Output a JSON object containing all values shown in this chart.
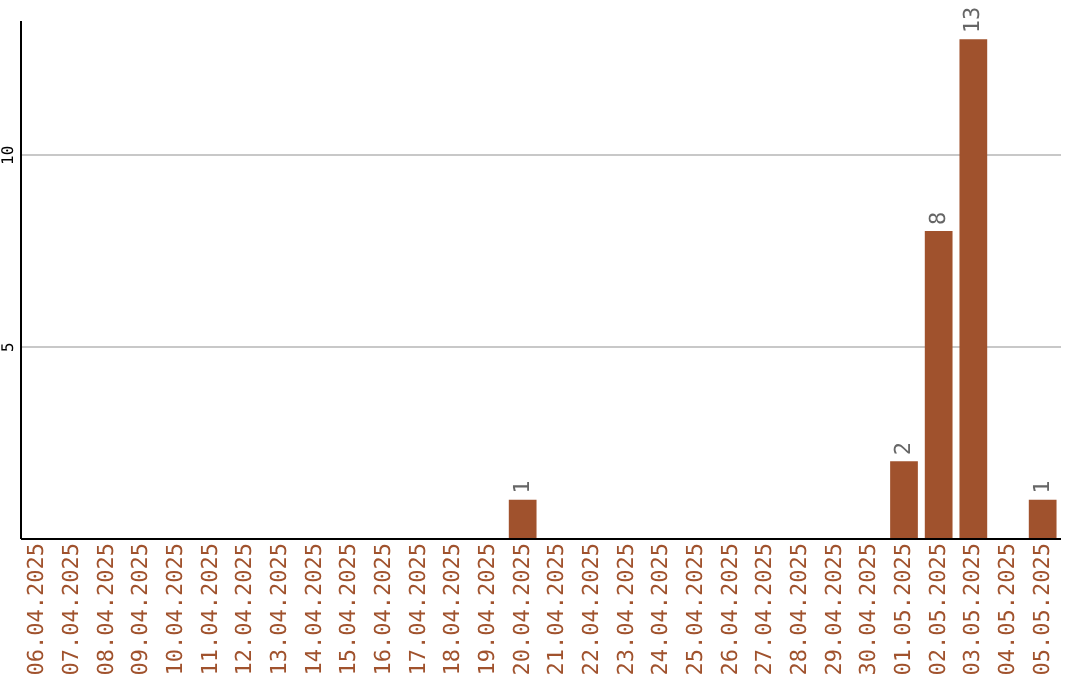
{
  "chart_data": {
    "type": "bar",
    "categories": [
      "06.04.2025",
      "07.04.2025",
      "08.04.2025",
      "09.04.2025",
      "10.04.2025",
      "11.04.2025",
      "12.04.2025",
      "13.04.2025",
      "14.04.2025",
      "15.04.2025",
      "16.04.2025",
      "17.04.2025",
      "18.04.2025",
      "19.04.2025",
      "20.04.2025",
      "21.04.2025",
      "22.04.2025",
      "23.04.2025",
      "24.04.2025",
      "25.04.2025",
      "26.04.2025",
      "27.04.2025",
      "28.04.2025",
      "29.04.2025",
      "30.04.2025",
      "01.05.2025",
      "02.05.2025",
      "03.05.2025",
      "04.05.2025",
      "05.05.2025"
    ],
    "values": [
      0,
      0,
      0,
      0,
      0,
      0,
      0,
      0,
      0,
      0,
      0,
      0,
      0,
      0,
      1,
      0,
      0,
      0,
      0,
      0,
      0,
      0,
      0,
      0,
      0,
      2,
      8,
      13,
      0,
      1
    ],
    "value_labels": [
      null,
      null,
      null,
      null,
      null,
      null,
      null,
      null,
      null,
      null,
      null,
      null,
      null,
      null,
      "1",
      null,
      null,
      null,
      null,
      null,
      null,
      null,
      null,
      null,
      null,
      "2",
      "8",
      "13",
      null,
      "1"
    ],
    "color": "#a0522d",
    "ylim": [
      0,
      13.5
    ],
    "yticks": [
      5,
      10
    ],
    "grid": "y"
  }
}
